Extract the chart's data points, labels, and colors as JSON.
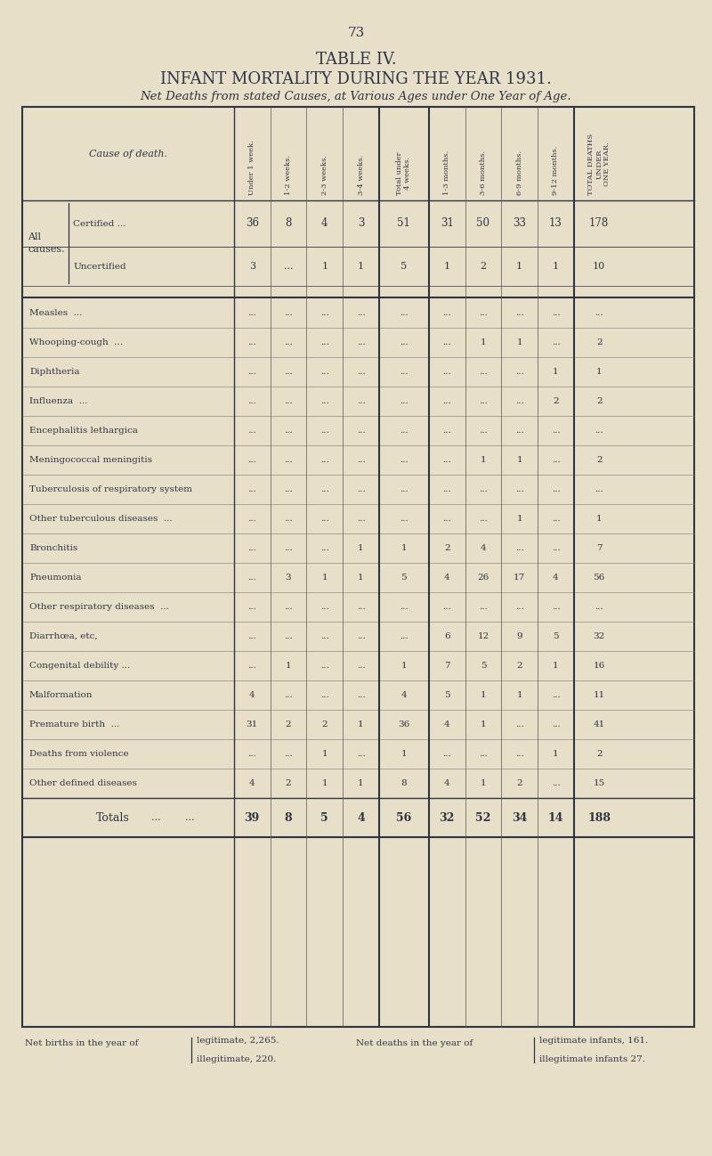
{
  "page_number": "73",
  "title1": "TABLE IV.",
  "title2": "INFANT MORTALITY DURING THE YEAR 1931.",
  "title3": "Net Deaths from stated Causes, at Various Ages under One Year of Age.",
  "bg_color": "#e8dfc8",
  "text_color": "#2d3545",
  "col_headers": [
    "Under 1 week.",
    "1-2 weeks.",
    "2-3 weeks.",
    "3-4 weeks.",
    "Total under\n4 weeks.",
    "1-3 months.",
    "3-6 months.",
    "6-9 months.",
    "9-12 months.",
    "TOTAL DEATHS\nUNDER\nONE YEAR."
  ],
  "row_header_col": "Cause of death.",
  "rows": [
    {
      "label": "All causes.",
      "sublabel": "Certified ...",
      "data": [
        "36",
        "8",
        "4",
        "3",
        "51",
        "31",
        "50",
        "33",
        "13",
        "178"
      ],
      "type": "certified"
    },
    {
      "label": "",
      "sublabel": "Uncertified",
      "data": [
        "3",
        "...",
        "1",
        "1",
        "5",
        "1",
        "2",
        "1",
        "1",
        "10"
      ],
      "type": "uncertified"
    },
    {
      "label": "Measles  ...",
      "data": [
        "...",
        "...",
        "...",
        "...",
        "...",
        "...",
        "...",
        "...",
        "...",
        "..."
      ],
      "type": "normal"
    },
    {
      "label": "Whooping-cough  ...",
      "data": [
        "...",
        "...",
        "...",
        "...",
        "...",
        "...",
        "1",
        "1",
        "...",
        "2"
      ],
      "type": "normal"
    },
    {
      "label": "Diphtheria",
      "data": [
        "...",
        "...",
        "...",
        "...",
        "...",
        "...",
        "...",
        "...",
        "1",
        "1"
      ],
      "type": "normal"
    },
    {
      "label": "Influenza  ...",
      "data": [
        "...",
        "...",
        "...",
        "...",
        "...",
        "...",
        "...",
        "...",
        "2",
        "2"
      ],
      "type": "normal"
    },
    {
      "label": "Encephalitis lethargica",
      "data": [
        "...",
        "...",
        "...",
        "...",
        "...",
        "...",
        "...",
        "...",
        "...",
        "..."
      ],
      "type": "normal"
    },
    {
      "label": "Meningococcal meningitis",
      "data": [
        "...",
        "...",
        "...",
        "...",
        "...",
        "...",
        "1",
        "1",
        "...",
        "2"
      ],
      "type": "normal"
    },
    {
      "label": "Tuberculosis of respiratory system",
      "data": [
        "...",
        "...",
        "...",
        "...",
        "...",
        "...",
        "...",
        "...",
        "...",
        "..."
      ],
      "type": "normal"
    },
    {
      "label": "Other tuberculous diseases  ...",
      "data": [
        "...",
        "...",
        "...",
        "...",
        "...",
        "...",
        "...",
        "1",
        "...",
        "1"
      ],
      "type": "normal"
    },
    {
      "label": "Bronchitis",
      "data": [
        "...",
        "...",
        "...",
        "1",
        "1",
        "2",
        "4",
        "...",
        "...",
        "7"
      ],
      "type": "normal"
    },
    {
      "label": "Pneumonia",
      "data": [
        "...",
        "3",
        "1",
        "1",
        "5",
        "4",
        "26",
        "17",
        "4",
        "56"
      ],
      "type": "normal"
    },
    {
      "label": "Other respiratory diseases  ...",
      "data": [
        "...",
        "...",
        "...",
        "...",
        "...",
        "...",
        "...",
        "...",
        "...",
        "..."
      ],
      "type": "normal"
    },
    {
      "label": "Diarrhœa, etc,",
      "data": [
        "...",
        "...",
        "...",
        "...",
        "...",
        "6",
        "12",
        "9",
        "5",
        "32"
      ],
      "type": "normal"
    },
    {
      "label": "Congenital debility ...",
      "data": [
        "...",
        "1",
        "...",
        "...",
        "1",
        "7",
        "5",
        "2",
        "1",
        "16"
      ],
      "type": "normal"
    },
    {
      "label": "Malformation",
      "data": [
        "4",
        "...",
        "...",
        "...",
        "4",
        "5",
        "1",
        "1",
        "...",
        "11"
      ],
      "type": "normal"
    },
    {
      "label": "Premature birth  ...",
      "data": [
        "31",
        "2",
        "2",
        "1",
        "36",
        "4",
        "1",
        "...",
        "...",
        "41"
      ],
      "type": "normal"
    },
    {
      "label": "Deaths from violence",
      "data": [
        "...",
        "...",
        "1",
        "...",
        "1",
        "...",
        "...",
        "...",
        "1",
        "2"
      ],
      "type": "normal"
    },
    {
      "label": "Other defined diseases",
      "data": [
        "4",
        "2",
        "1",
        "1",
        "8",
        "4",
        "1",
        "2",
        "...",
        "15"
      ],
      "type": "normal"
    },
    {
      "label": "Totals",
      "data": [
        "39",
        "8",
        "5",
        "4",
        "56",
        "32",
        "52",
        "34",
        "14",
        "188"
      ],
      "type": "totals"
    }
  ],
  "footer_left1": "Net births in the year of",
  "footer_left2": "legitimate, 2,265.",
  "footer_left3": "illegitimate, 220.",
  "footer_right1": "Net deaths in the year of",
  "footer_right2": "legitimate infants, 161.",
  "footer_right3": "illegitimate infants 27."
}
